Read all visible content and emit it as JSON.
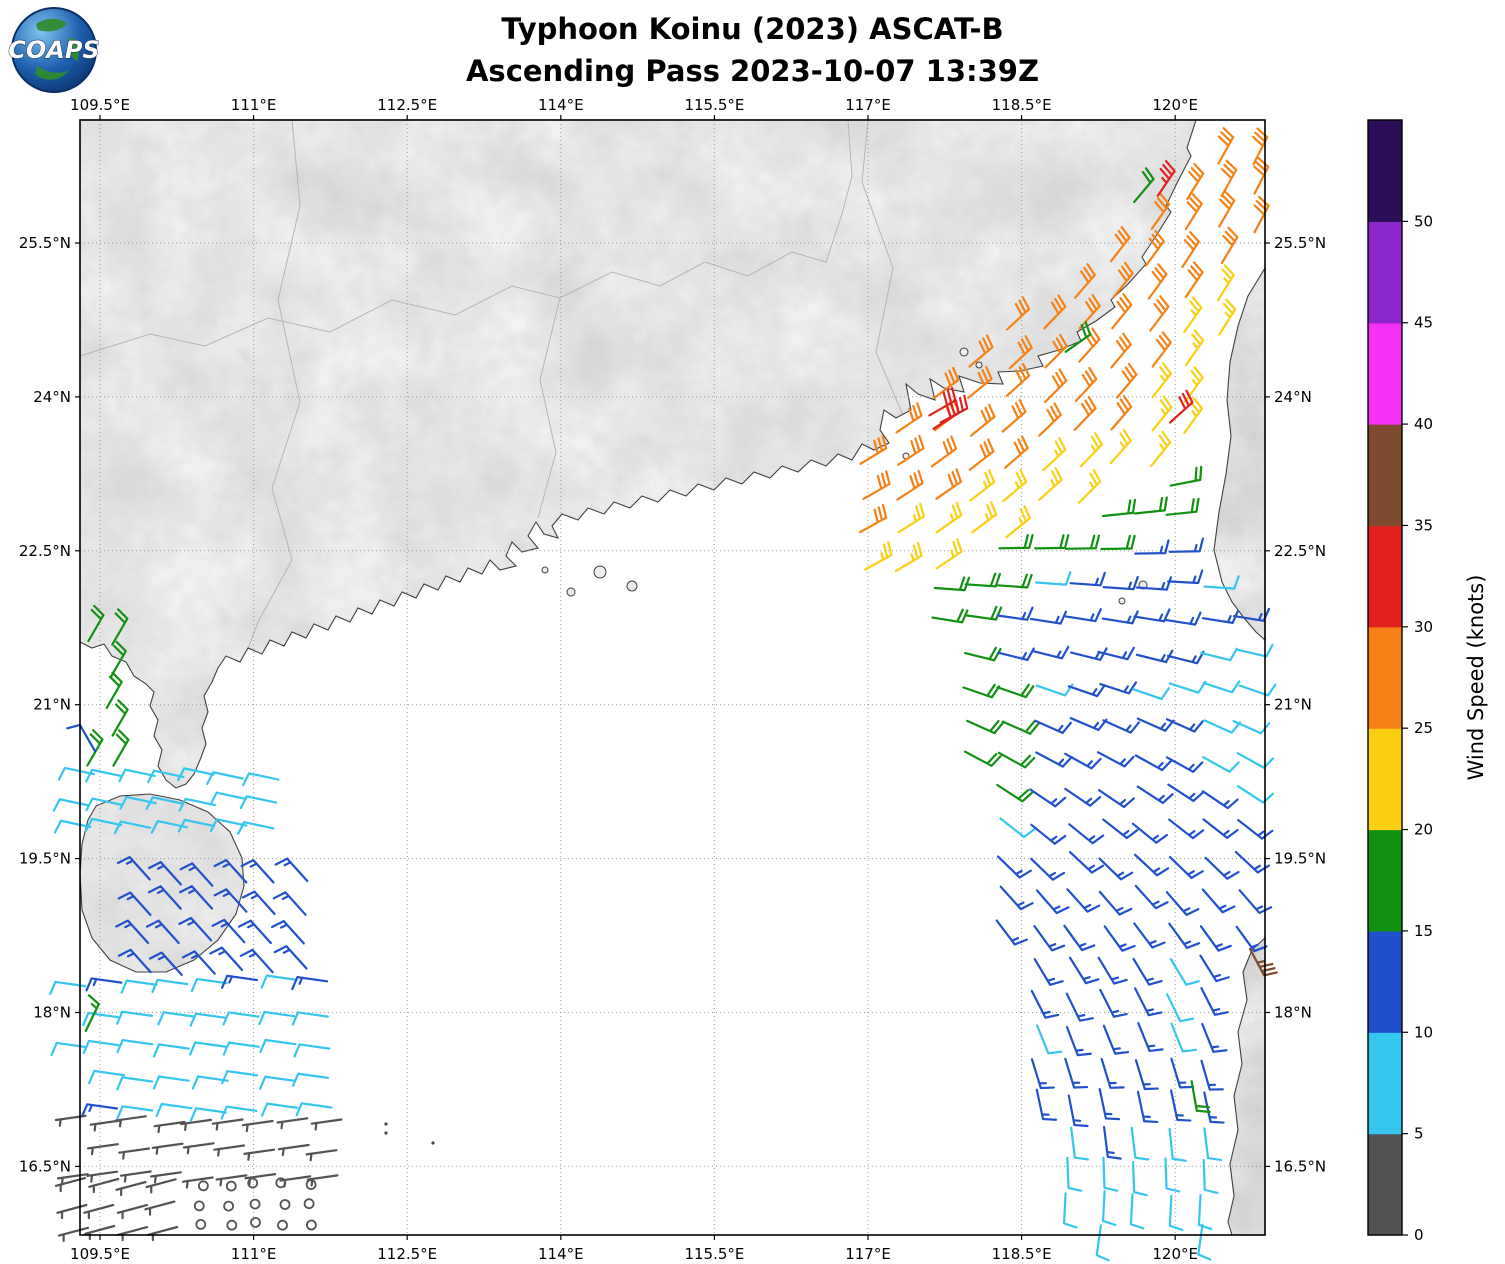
{
  "header": {
    "title_line1": "Typhoon Koinu (2023) ASCAT-B",
    "title_line2": "Ascending Pass 2023-10-07 13:39Z"
  },
  "logo": {
    "text": "COAPS"
  },
  "axes": {
    "lon_ticks": [
      "109.5°E",
      "111°E",
      "112.5°E",
      "114°E",
      "115.5°E",
      "117°E",
      "118.5°E",
      "120°E"
    ],
    "lon_values": [
      109.5,
      111,
      112.5,
      114,
      115.5,
      117,
      118.5,
      120
    ],
    "lat_ticks": [
      "25.5°N",
      "24°N",
      "22.5°N",
      "21°N",
      "19.5°N",
      "18°N",
      "16.5°N"
    ],
    "lat_values": [
      25.5,
      24,
      22.5,
      21,
      19.5,
      18,
      16.5
    ],
    "lon_range": [
      109.3,
      120.88
    ],
    "lat_range": [
      15.83,
      26.7
    ]
  },
  "colorbar": {
    "label": "Wind Speed (knots)",
    "tick_values": [
      0,
      5,
      10,
      15,
      20,
      25,
      30,
      35,
      40,
      45,
      50
    ],
    "vmin": 0,
    "vmax": 55,
    "colors": [
      "#535353",
      "#35c6f0",
      "#2050cc",
      "#119111",
      "#fccf12",
      "#f58114",
      "#e32020",
      "#7e4a2e",
      "#f431f4",
      "#8b27c9",
      "#2a0d56"
    ]
  },
  "chart_data": {
    "type": "wind_barb_map",
    "units": "knots",
    "speed_bins": [
      [
        0,
        5,
        "#535353"
      ],
      [
        5,
        10,
        "#35c6f0"
      ],
      [
        10,
        15,
        "#2050cc"
      ],
      [
        15,
        20,
        "#119111"
      ],
      [
        20,
        25,
        "#fccf12"
      ],
      [
        25,
        30,
        "#f58114"
      ],
      [
        30,
        35,
        "#e32020"
      ],
      [
        35,
        40,
        "#7e4a2e"
      ],
      [
        40,
        45,
        "#f431f4"
      ],
      [
        45,
        50,
        "#8b27c9"
      ],
      [
        50,
        999,
        "#2a0d56"
      ]
    ],
    "fields": [
      {
        "name": "taiwan-strait-northeast-swath",
        "zone": "ne",
        "lon": [
          116.95,
          120.85
        ],
        "lat": [
          22.0,
          26.6
        ],
        "dlon": 0.35,
        "dlat": 0.33,
        "speed_orange": 28,
        "speed_yellow": 23,
        "dir_base": 44,
        "dir_dlon": -7,
        "dir_dlat": -2
      },
      {
        "name": "south-of-taiwan-swath",
        "zone": "lower",
        "lon": [
          117.3,
          120.85
        ],
        "lat": [
          15.9,
          23.55
        ],
        "dlon": 0.33,
        "dlat": 0.33,
        "speed_blue": 13,
        "speed_green": 18,
        "speed_cyan": 8,
        "dir_base": 92,
        "dir_dlat": 15,
        "dir_max": 190
      },
      {
        "name": "gulf-coast-green",
        "zone": "rect",
        "lon": [
          109.36,
          109.6
        ],
        "lat": [
          20.4,
          21.58
        ],
        "dlon": 0.24,
        "dlat": 0.3,
        "speed": 18,
        "dir": 30
      },
      {
        "name": "strait-cyan-rows",
        "zone": "rect",
        "lon": [
          109.42,
          111.35
        ],
        "lat": [
          19.8,
          20.3
        ],
        "dlon": 0.3,
        "dlat": 0.25,
        "speed": 8,
        "dir": 282
      },
      {
        "name": "west-blue-cluster",
        "zone": "rect",
        "lon": [
          110.0,
          111.45
        ],
        "lat": [
          18.4,
          19.3
        ],
        "dlon": 0.3,
        "dlat": 0.29,
        "speed": 13,
        "dir": 318
      },
      {
        "name": "southwest-cyan-field",
        "zone": "rect",
        "lon": [
          109.36,
          111.9
        ],
        "lat": [
          17.05,
          18.35
        ],
        "dlon": 0.34,
        "dlat": 0.31,
        "speed": 8,
        "dir": 278,
        "mix_speed": 13,
        "mix_frac": 0.12
      },
      {
        "name": "southwest-gray-upper",
        "zone": "rect",
        "lon": [
          109.36,
          111.75
        ],
        "lat": [
          16.42,
          16.92
        ],
        "dlon": 0.31,
        "dlat": 0.27,
        "speed": 3,
        "dir": 262
      },
      {
        "name": "southwest-gray-lower",
        "zone": "rect",
        "lon": [
          109.36,
          110.3
        ],
        "lat": [
          15.92,
          16.3
        ],
        "dlon": 0.3,
        "dlat": 0.22,
        "speed": 3,
        "dir": 255
      },
      {
        "name": "calm-circles",
        "zone": "rect",
        "lon": [
          110.5,
          111.55
        ],
        "lat": [
          15.92,
          16.3
        ],
        "dlon": 0.26,
        "dlat": 0.2,
        "speed": 0,
        "dir": 0
      }
    ],
    "outliers": [
      {
        "lon": 117.6,
        "lat": 23.82,
        "speed": 32,
        "dir": 60
      },
      {
        "lon": 117.71,
        "lat": 23.75,
        "speed": 32,
        "dir": 62
      },
      {
        "lon": 117.64,
        "lat": 23.69,
        "speed": 31,
        "dir": 58
      },
      {
        "lon": 119.95,
        "lat": 23.75,
        "speed": 31,
        "dir": 48
      },
      {
        "lon": 119.83,
        "lat": 25.96,
        "speed": 33,
        "dir": 34
      },
      {
        "lon": 119.6,
        "lat": 25.9,
        "speed": 18,
        "dir": 40
      },
      {
        "lon": 118.93,
        "lat": 24.44,
        "speed": 18,
        "dir": 55
      },
      {
        "lon": 120.73,
        "lat": 18.62,
        "speed": 37,
        "dir": 152
      },
      {
        "lon": 120.8,
        "lat": 18.53,
        "speed": 36,
        "dir": 150
      },
      {
        "lon": 120.16,
        "lat": 17.33,
        "speed": 18,
        "dir": 170
      },
      {
        "lon": 109.36,
        "lat": 17.82,
        "speed": 16,
        "dir": 26
      },
      {
        "lon": 109.45,
        "lat": 20.55,
        "speed": 12,
        "dir": 330
      }
    ]
  }
}
